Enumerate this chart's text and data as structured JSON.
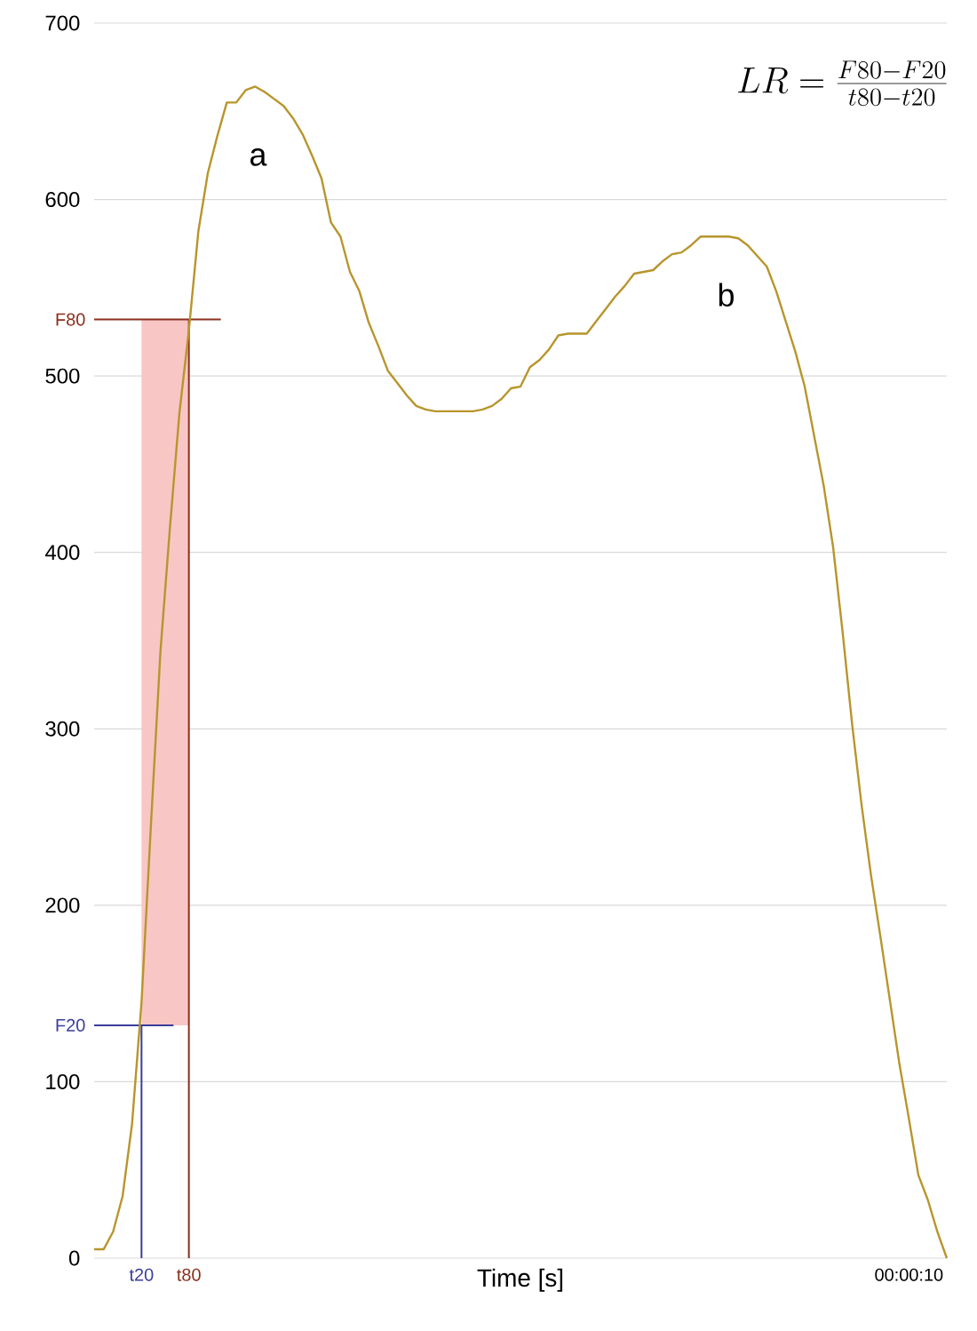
{
  "chart_data": {
    "type": "line",
    "xlabel": "Time [s]",
    "categories": [
      null,
      null,
      null,
      null,
      null,
      "t20",
      null,
      null,
      null,
      null,
      "t80",
      null,
      null,
      null,
      null,
      null,
      null,
      null,
      null,
      null,
      null,
      null,
      null,
      null,
      null,
      null,
      null,
      null,
      null,
      null,
      null,
      null,
      null,
      null,
      null,
      null,
      null,
      null,
      null,
      null,
      null,
      null,
      null,
      null,
      null,
      null,
      null,
      null,
      null,
      null,
      null,
      null,
      null,
      null,
      null,
      null,
      null,
      null,
      null,
      null,
      null,
      null,
      null,
      null,
      null,
      null,
      null,
      null,
      null,
      null,
      null,
      null,
      null,
      null,
      null,
      null,
      null,
      null,
      null,
      null,
      null,
      null,
      null,
      null,
      null,
      null,
      "00:00:10",
      null,
      null,
      null,
      null
    ],
    "series": [
      {
        "color": "#b8952c",
        "values": [
          5,
          5,
          15,
          35,
          76,
          145,
          246,
          344,
          414,
          479,
          526,
          582,
          615,
          636,
          655,
          655,
          662,
          664,
          661,
          657,
          653,
          646,
          637,
          625,
          612,
          587,
          579,
          559,
          548,
          530,
          517,
          503,
          496,
          489,
          483,
          481,
          480,
          480,
          480,
          480,
          480,
          481,
          483,
          487,
          493,
          494,
          505,
          509,
          515,
          523,
          524,
          524,
          524,
          531,
          538,
          545,
          551,
          558,
          559,
          560,
          565,
          569,
          570,
          574,
          579,
          579,
          579,
          579,
          578,
          574,
          568,
          562,
          548,
          531,
          514,
          494,
          466,
          438,
          403,
          355,
          303,
          257,
          217,
          182,
          146,
          110,
          79,
          47,
          33,
          15,
          0
        ]
      }
    ],
    "ylim": [
      0,
      700
    ],
    "yticks": [
      0,
      100,
      200,
      300,
      400,
      500,
      600,
      700
    ],
    "grid": "y",
    "marker": "none",
    "line_style": "solid",
    "ref_lines": [
      {
        "axis": "x",
        "value": "t20",
        "color": "#3a3d9b"
      },
      {
        "axis": "x",
        "value": "t80",
        "color": "#8b2e1c"
      },
      {
        "axis": "y",
        "value": 132,
        "label": "F20",
        "color": "#3a3d9b"
      },
      {
        "axis": "y",
        "value": 532,
        "label": "F80",
        "color": "#8b2e1c"
      }
    ],
    "bands": [
      {
        "axis": "y",
        "from": 132,
        "to": 532,
        "color": "#f9c6c6"
      }
    ],
    "annotations": [
      "a",
      "b",
      "LR=\\frac{F80-F20}{t80-t20}"
    ]
  }
}
